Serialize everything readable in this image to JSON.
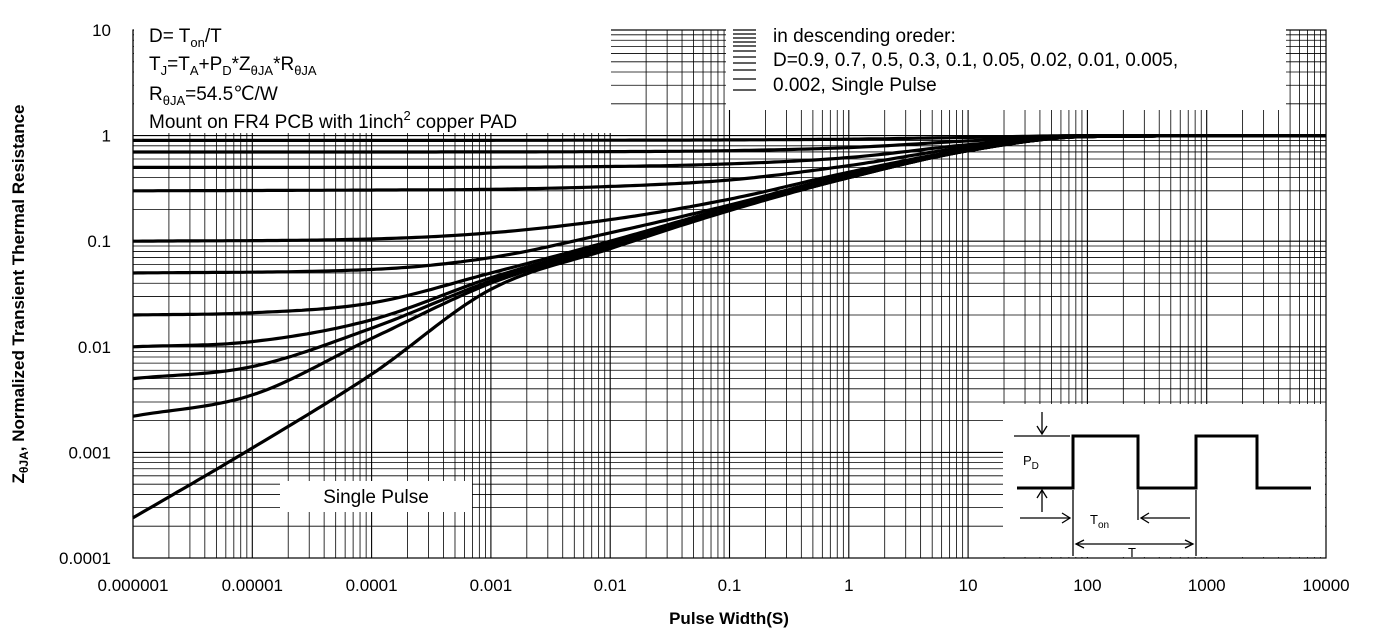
{
  "chart_data": {
    "type": "line",
    "xlabel": "Pulse Width(S)",
    "ylabel_main": "Z",
    "ylabel_sub": "θJA",
    "ylabel_rest": ", Normalized Transient Thermal Resistance",
    "x_scale": "log",
    "y_scale": "log",
    "xlim": [
      1e-06,
      10000
    ],
    "ylim": [
      0.0001,
      10
    ],
    "x_ticks": [
      "0.000001",
      "0.00001",
      "0.0001",
      "0.001",
      "0.01",
      "0.1",
      "1",
      "10",
      "100",
      "1000",
      "10000"
    ],
    "y_ticks": [
      "10",
      "1",
      "0.1",
      "0.01",
      "0.001",
      "0.0001"
    ],
    "grid": true,
    "notes": {
      "line1_pre": "D= T",
      "line1_sub": "on",
      "line1_post": "/T",
      "line2_a": "T",
      "line2_a_sub": "J",
      "line2_b": "=T",
      "line2_b_sub": "A",
      "line2_c": "+P",
      "line2_c_sub": "D",
      "line2_d": "*Z",
      "line2_d_sub": "θJA",
      "line2_e": "*R",
      "line2_e_sub": "θJA",
      "line3_a": "R",
      "line3_a_sub": "θJA",
      "line3_b": "=54.5℃/W",
      "line4_a": "Mount on FR4 PCB with 1inch",
      "line4_sup": "2",
      "line4_b": " copper PAD"
    },
    "legend": {
      "line1": "in descending oreder:",
      "line2": "D=0.9, 0.7, 0.5, 0.3, 0.1, 0.05, 0.02, 0.01, 0.005,",
      "line3": "0.002, Single Pulse"
    },
    "single_pulse_label": "Single Pulse",
    "inset": {
      "pd": "P",
      "pd_sub": "D",
      "ton": "T",
      "ton_sub": "on",
      "t": "T"
    },
    "series": [
      {
        "duty": 0.9,
        "x": [
          1e-06,
          0.0001,
          0.01,
          0.1,
          1,
          10,
          100,
          10000
        ],
        "y": [
          0.9,
          0.9,
          0.905,
          0.91,
          0.925,
          0.96,
          1.0,
          1.0
        ]
      },
      {
        "duty": 0.7,
        "x": [
          1e-06,
          0.0001,
          0.01,
          0.1,
          1,
          10,
          100,
          10000
        ],
        "y": [
          0.7,
          0.7,
          0.705,
          0.72,
          0.77,
          0.89,
          1.0,
          1.0
        ]
      },
      {
        "duty": 0.5,
        "x": [
          1e-06,
          0.0001,
          0.01,
          0.1,
          1,
          10,
          100,
          10000
        ],
        "y": [
          0.5,
          0.5,
          0.51,
          0.54,
          0.62,
          0.82,
          0.99,
          1.0
        ]
      },
      {
        "duty": 0.3,
        "x": [
          1e-06,
          0.0001,
          0.001,
          0.01,
          0.1,
          1,
          10,
          100,
          10000
        ],
        "y": [
          0.3,
          0.305,
          0.31,
          0.33,
          0.38,
          0.52,
          0.78,
          0.98,
          1.0
        ]
      },
      {
        "duty": 0.1,
        "x": [
          1e-06,
          0.0001,
          0.001,
          0.01,
          0.1,
          1,
          10,
          100,
          10000
        ],
        "y": [
          0.1,
          0.105,
          0.12,
          0.16,
          0.25,
          0.45,
          0.74,
          0.98,
          1.0
        ]
      },
      {
        "duty": 0.05,
        "x": [
          1e-06,
          0.0001,
          0.001,
          0.01,
          0.1,
          1,
          10,
          100,
          10000
        ],
        "y": [
          0.05,
          0.054,
          0.07,
          0.12,
          0.22,
          0.43,
          0.73,
          0.98,
          1.0
        ]
      },
      {
        "duty": 0.02,
        "x": [
          1e-06,
          1e-05,
          0.0001,
          0.001,
          0.01,
          0.1,
          1,
          10,
          100,
          10000
        ],
        "y": [
          0.02,
          0.021,
          0.026,
          0.05,
          0.1,
          0.21,
          0.42,
          0.72,
          0.98,
          1.0
        ]
      },
      {
        "duty": 0.01,
        "x": [
          1e-06,
          1e-05,
          0.0001,
          0.001,
          0.01,
          0.1,
          1,
          10,
          100,
          10000
        ],
        "y": [
          0.01,
          0.0112,
          0.018,
          0.045,
          0.095,
          0.205,
          0.41,
          0.72,
          0.98,
          1.0
        ]
      },
      {
        "duty": 0.005,
        "x": [
          1e-06,
          1e-05,
          0.0001,
          0.001,
          0.01,
          0.1,
          1,
          10,
          100,
          10000
        ],
        "y": [
          0.005,
          0.0065,
          0.015,
          0.042,
          0.092,
          0.2,
          0.4,
          0.72,
          0.98,
          1.0
        ]
      },
      {
        "duty": 0.002,
        "x": [
          1e-06,
          1e-05,
          0.0001,
          0.001,
          0.01,
          0.1,
          1,
          10,
          100,
          10000
        ],
        "y": [
          0.0022,
          0.0035,
          0.012,
          0.04,
          0.09,
          0.2,
          0.4,
          0.72,
          0.98,
          1.0
        ]
      },
      {
        "duty": 0,
        "x": [
          1e-06,
          1e-05,
          0.0001,
          0.001,
          0.01,
          0.1,
          1,
          10,
          100,
          10000
        ],
        "y": [
          0.00024,
          0.0011,
          0.0055,
          0.035,
          0.085,
          0.195,
          0.4,
          0.72,
          0.98,
          1.0
        ]
      }
    ]
  }
}
